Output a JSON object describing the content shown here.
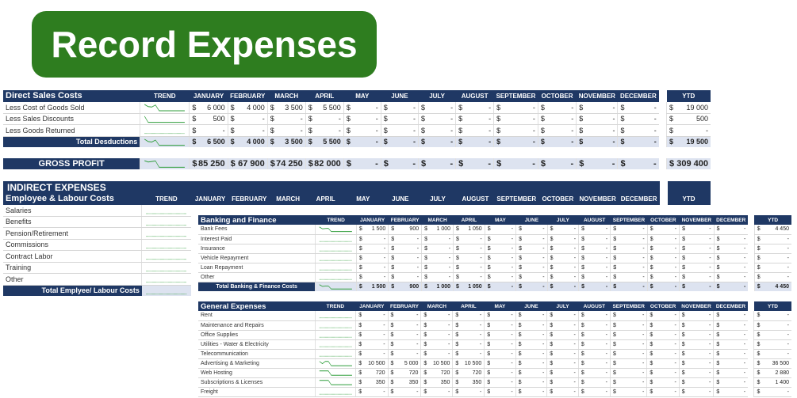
{
  "banner": {
    "title": "Record Expenses"
  },
  "months": [
    "JANUARY",
    "FEBRUARY",
    "MARCH",
    "APRIL",
    "MAY",
    "JUNE",
    "JULY",
    "AUGUST",
    "SEPTEMBER",
    "OCTOBER",
    "NOVEMBER",
    "DECEMBER"
  ],
  "trend_label": "TREND",
  "ytd_label": "YTD",
  "direct": {
    "title": "Direct Sales Costs",
    "rows": [
      {
        "label": "Less Cost of Goods Sold",
        "values": [
          "6 000",
          "4 000",
          "3 500",
          "5 500",
          "-",
          "-",
          "-",
          "-",
          "-",
          "-",
          "-",
          "-"
        ],
        "ytd": "19 000"
      },
      {
        "label": "Less Sales Discounts",
        "values": [
          "500",
          "-",
          "-",
          "-",
          "-",
          "-",
          "-",
          "-",
          "-",
          "-",
          "-",
          "-"
        ],
        "ytd": "500"
      },
      {
        "label": "Less Goods Returned",
        "values": [
          "-",
          "-",
          "-",
          "-",
          "-",
          "-",
          "-",
          "-",
          "-",
          "-",
          "-",
          "-"
        ],
        "ytd": "-"
      }
    ],
    "total": {
      "label": "Total Desductions",
      "values": [
        "6 500",
        "4 000",
        "3 500",
        "5 500",
        "-",
        "-",
        "-",
        "-",
        "-",
        "-",
        "-",
        "-"
      ],
      "ytd": "19 500"
    }
  },
  "gross": {
    "label": "GROSS PROFIT",
    "values": [
      "85 250",
      "67 900",
      "74 250",
      "82 000",
      "-",
      "-",
      "-",
      "-",
      "-",
      "-",
      "-",
      "-"
    ],
    "ytd": "309 400"
  },
  "indirect": {
    "title": "INDIRECT EXPENSES",
    "employee": {
      "title": "Employee & Labour Costs",
      "rows": [
        "Salaries",
        "Benefits",
        "Pension/Retirement",
        "Commissions",
        "Contract Labor",
        "Training",
        "Other"
      ],
      "total_label": "Total Emplyee/ Labour Costs"
    }
  },
  "banking": {
    "title": "Banking and Finance",
    "rows": [
      {
        "label": "Bank Fees",
        "values": [
          "1 500",
          "900",
          "1 000",
          "1 050",
          "-",
          "-",
          "-",
          "-",
          "-",
          "-",
          "-",
          "-"
        ],
        "ytd": "4 450"
      },
      {
        "label": "Interest Paid",
        "values": [
          "-",
          "-",
          "-",
          "-",
          "-",
          "-",
          "-",
          "-",
          "-",
          "-",
          "-",
          "-"
        ],
        "ytd": "-"
      },
      {
        "label": "Insurance",
        "values": [
          "-",
          "-",
          "-",
          "-",
          "-",
          "-",
          "-",
          "-",
          "-",
          "-",
          "-",
          "-"
        ],
        "ytd": "-"
      },
      {
        "label": "Vehicle Repayment",
        "values": [
          "-",
          "-",
          "-",
          "-",
          "-",
          "-",
          "-",
          "-",
          "-",
          "-",
          "-",
          "-"
        ],
        "ytd": "-"
      },
      {
        "label": "Loan Repayment",
        "values": [
          "-",
          "-",
          "-",
          "-",
          "-",
          "-",
          "-",
          "-",
          "-",
          "-",
          "-",
          "-"
        ],
        "ytd": "-"
      },
      {
        "label": "Other",
        "values": [
          "-",
          "-",
          "-",
          "-",
          "-",
          "-",
          "-",
          "-",
          "-",
          "-",
          "-",
          "-"
        ],
        "ytd": "-"
      }
    ],
    "total": {
      "label": "Total Banking & Finance Costs",
      "values": [
        "1 500",
        "900",
        "1 000",
        "1 050",
        "-",
        "-",
        "-",
        "-",
        "-",
        "-",
        "-",
        "-"
      ],
      "ytd": "4 450"
    }
  },
  "general": {
    "title": "General Expenses",
    "rows": [
      {
        "label": "Rent",
        "values": [
          "-",
          "-",
          "-",
          "-",
          "-",
          "-",
          "-",
          "-",
          "-",
          "-",
          "-",
          "-"
        ],
        "ytd": "-"
      },
      {
        "label": "Maintenance and Repairs",
        "values": [
          "-",
          "-",
          "-",
          "-",
          "-",
          "-",
          "-",
          "-",
          "-",
          "-",
          "-",
          "-"
        ],
        "ytd": "-"
      },
      {
        "label": "Office Supplies",
        "values": [
          "-",
          "-",
          "-",
          "-",
          "-",
          "-",
          "-",
          "-",
          "-",
          "-",
          "-",
          "-"
        ],
        "ytd": "-"
      },
      {
        "label": "Utilities - Water & Electricity",
        "values": [
          "-",
          "-",
          "-",
          "-",
          "-",
          "-",
          "-",
          "-",
          "-",
          "-",
          "-",
          "-"
        ],
        "ytd": "-"
      },
      {
        "label": "Telecommunication",
        "values": [
          "-",
          "-",
          "-",
          "-",
          "-",
          "-",
          "-",
          "-",
          "-",
          "-",
          "-",
          "-"
        ],
        "ytd": "-"
      },
      {
        "label": "Advertising & Marketing",
        "values": [
          "10 500",
          "5 000",
          "10 500",
          "10 500",
          "-",
          "-",
          "-",
          "-",
          "-",
          "-",
          "-",
          "-"
        ],
        "ytd": "36 500"
      },
      {
        "label": "Web Hosting",
        "values": [
          "720",
          "720",
          "720",
          "720",
          "-",
          "-",
          "-",
          "-",
          "-",
          "-",
          "-",
          "-"
        ],
        "ytd": "2 880"
      },
      {
        "label": "Subscriptions & Licenses",
        "values": [
          "350",
          "350",
          "350",
          "350",
          "-",
          "-",
          "-",
          "-",
          "-",
          "-",
          "-",
          "-"
        ],
        "ytd": "1 400"
      },
      {
        "label": "Freight",
        "values": [
          "-",
          "-",
          "-",
          "-",
          "-",
          "-",
          "-",
          "-",
          "-",
          "-",
          "-",
          "-"
        ],
        "ytd": "-"
      }
    ]
  },
  "currency": "$"
}
